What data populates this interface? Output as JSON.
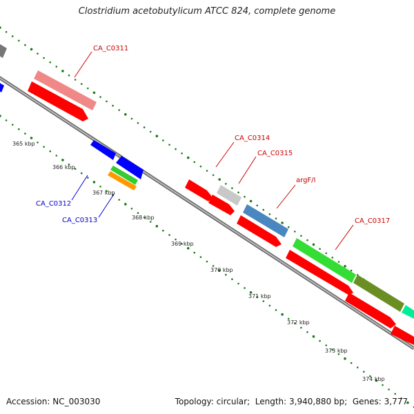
{
  "title": "Clostridium acetobutylicum ATCC 824, complete genome",
  "footer": {
    "accession_label": "Accession:",
    "accession": "NC_003030",
    "topology_label": "Topology:",
    "topology": "circular",
    "length_label": "Length:",
    "length": "3,940,880 bp",
    "genes_label": "Genes:",
    "genes": "3,777"
  },
  "ticks": [
    "365 kbp",
    "366 kbp",
    "367 kbp",
    "368 kbp",
    "369 kbp",
    "370 kbp",
    "371 kbp",
    "372 kbp",
    "373 kbp",
    "374 kbp"
  ],
  "gene_labels": [
    {
      "id": "CA_C0311",
      "color": "#cc0000"
    },
    {
      "id": "CA_C0312",
      "color": "#0000cc"
    },
    {
      "id": "CA_C0313",
      "color": "#0000cc"
    },
    {
      "id": "CA_C0314",
      "color": "#cc0000"
    },
    {
      "id": "CA_C0315",
      "color": "#cc0000"
    },
    {
      "id": "argF/I",
      "color": "#cc0000"
    },
    {
      "id": "CA_C0317",
      "color": "#cc0000"
    }
  ],
  "colors": {
    "backbone": "#888888",
    "dots": "#1a7a1a",
    "cds": "#ff0000",
    "reverse": "#0000ff",
    "pink": "#f08888",
    "gray": "#cccccc",
    "steelblue": "#4a86c0",
    "green": "#33dd33",
    "olive": "#6b8e23",
    "teal": "#00ee99",
    "yellowgreen": "#44cc44",
    "orange": "#ff9900"
  }
}
